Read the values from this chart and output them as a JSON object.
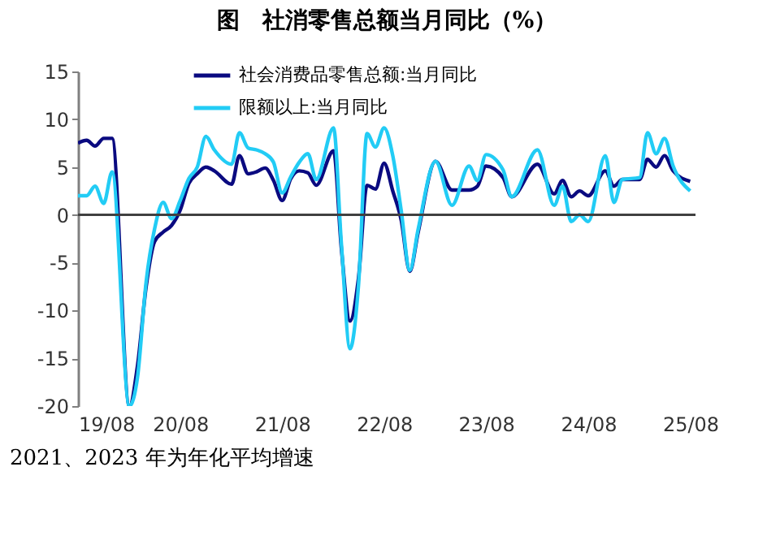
{
  "chart_data": {
    "type": "line",
    "title": "图　社消零售总额当月同比（%）",
    "xlim": [
      "2019-08",
      "2025-08-20"
    ],
    "xticks": [
      {
        "value": "2019-08",
        "label": "19/08"
      },
      {
        "value": "2020-08",
        "label": "20/08"
      },
      {
        "value": "2021-08",
        "label": "21/08"
      },
      {
        "value": "2022-08",
        "label": "22/08"
      },
      {
        "value": "2023-08",
        "label": "23/08"
      },
      {
        "value": "2024-08",
        "label": "24/08"
      },
      {
        "value": "2025-08",
        "label": "25/08"
      }
    ],
    "ylim": [
      -20,
      15
    ],
    "yticks": [
      -20,
      -15,
      -10,
      -5,
      0,
      5,
      10,
      15
    ],
    "legend": "top left",
    "ref_lines": [
      {
        "axis": "y",
        "value": 0,
        "color": "#404040"
      }
    ],
    "annotations": [
      "2021、2023 年为年化平均增速"
    ],
    "series": [
      {
        "name": "社会消费品零售总额:当月同比",
        "color": "#0a0a80",
        "x": [
          "2019-08",
          "2019-09",
          "2019-10",
          "2019-11",
          "2019-12",
          "2020-02",
          "2020-03",
          "2020-04",
          "2020-05",
          "2020-06",
          "2020-07",
          "2020-08",
          "2020-09",
          "2020-10",
          "2020-11",
          "2020-12",
          "2021-02",
          "2021-03",
          "2021-04",
          "2021-05",
          "2021-06",
          "2021-07",
          "2021-08",
          "2021-09",
          "2021-10",
          "2021-11",
          "2021-12",
          "2022-02",
          "2022-03",
          "2022-04",
          "2022-05",
          "2022-06",
          "2022-07",
          "2022-08",
          "2022-09",
          "2022-10",
          "2022-11",
          "2022-12",
          "2023-02",
          "2023-04",
          "2023-06",
          "2023-07",
          "2023-08",
          "2023-10",
          "2023-11",
          "2024-02",
          "2024-04",
          "2024-05",
          "2024-06",
          "2024-07",
          "2024-08",
          "2024-10",
          "2024-11",
          "2024-12",
          "2025-02",
          "2025-03",
          "2025-04",
          "2025-05",
          "2025-06",
          "2025-08"
        ],
        "values": [
          7.5,
          7.8,
          7.2,
          8.0,
          8.0,
          -20,
          -15.8,
          -7.5,
          -2.8,
          -1.8,
          -1.1,
          0.5,
          3.3,
          4.3,
          5.0,
          4.6,
          3.2,
          6.2,
          4.3,
          4.5,
          4.9,
          3.6,
          1.5,
          3.8,
          4.6,
          4.4,
          3.1,
          6.7,
          -3.5,
          -11.1,
          -6.7,
          3.1,
          2.7,
          5.4,
          2.5,
          -0.5,
          -5.9,
          -1.8,
          5.6,
          2.6,
          2.6,
          3.0,
          5.1,
          3.9,
          1.9,
          5.3,
          2.2,
          3.6,
          1.9,
          2.5,
          2.0,
          4.6,
          3.0,
          3.7,
          3.7,
          5.8,
          5.0,
          6.2,
          4.6,
          3.5
        ]
      },
      {
        "name": "限额以上:当月同比",
        "color": "#22ccf5",
        "x": [
          "2019-08",
          "2019-09",
          "2019-10",
          "2019-11",
          "2019-12",
          "2020-02",
          "2020-03",
          "2020-04",
          "2020-05",
          "2020-06",
          "2020-07",
          "2020-08",
          "2020-09",
          "2020-10",
          "2020-11",
          "2020-12",
          "2021-02",
          "2021-03",
          "2021-04",
          "2021-05",
          "2021-06",
          "2021-07",
          "2021-08",
          "2021-09",
          "2021-10",
          "2021-11",
          "2021-12",
          "2022-02",
          "2022-03",
          "2022-04",
          "2022-05",
          "2022-06",
          "2022-07",
          "2022-08",
          "2022-09",
          "2022-10",
          "2022-11",
          "2022-12",
          "2023-02",
          "2023-04",
          "2023-06",
          "2023-07",
          "2023-08",
          "2023-10",
          "2023-11",
          "2024-02",
          "2024-04",
          "2024-05",
          "2024-06",
          "2024-07",
          "2024-08",
          "2024-10",
          "2024-11",
          "2024-12",
          "2025-02",
          "2025-03",
          "2025-04",
          "2025-05",
          "2025-06",
          "2025-08"
        ],
        "values": [
          2.0,
          2.0,
          3.0,
          1.2,
          4.5,
          -20,
          -17,
          -7.0,
          -1.5,
          1.3,
          -0.4,
          1.5,
          3.8,
          5.0,
          8.2,
          6.8,
          5.3,
          8.6,
          7.0,
          6.8,
          6.4,
          5.5,
          2.3,
          4.0,
          5.5,
          6.4,
          3.7,
          9.1,
          -3.0,
          -14.0,
          -7.5,
          8.5,
          7.1,
          9.1,
          6.2,
          0.5,
          -5.8,
          -1.5,
          5.6,
          1.0,
          5.1,
          3.6,
          6.3,
          4.7,
          1.9,
          6.8,
          1.0,
          3.0,
          -0.7,
          0,
          -0.7,
          6.2,
          1.3,
          3.7,
          3.9,
          8.6,
          6.4,
          8.0,
          5.1,
          2.5
        ]
      }
    ]
  }
}
